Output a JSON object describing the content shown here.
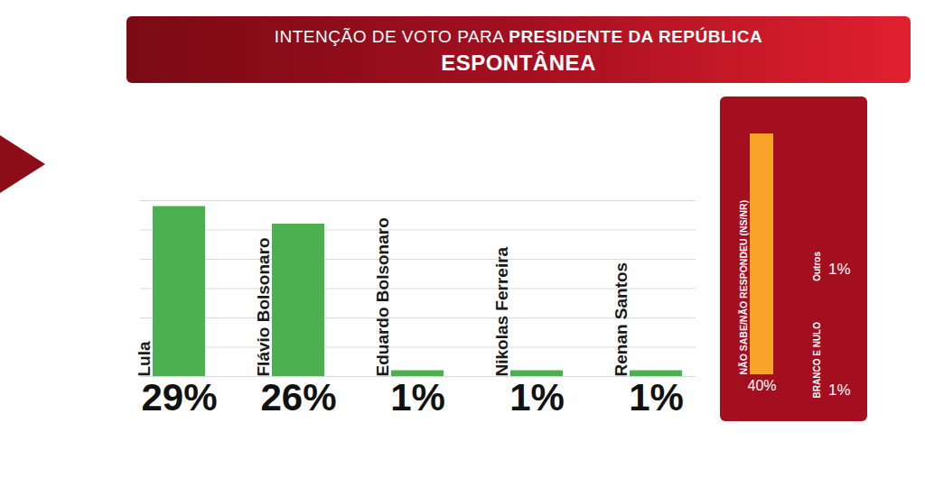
{
  "chart_data": [
    {
      "type": "bar",
      "title": "INTENÇÃO DE VOTO PARA PRESIDENTE DA REPÚBLICA",
      "title_emphasis": "PRESIDENTE DA REPÚBLICA",
      "subtitle": "ESPONTÂNEA",
      "categories": [
        "Lula",
        "Flávio Bolsonaro",
        "Eduardo Bolsonaro",
        "Nikolas Ferreira",
        "Renan Santos"
      ],
      "values": [
        29,
        26,
        1,
        1,
        1
      ],
      "value_labels": [
        "29%",
        "26%",
        "1%",
        "1%",
        "1%"
      ],
      "color": "#4cb050",
      "ylim": [
        0,
        30
      ],
      "yticks": [
        0,
        5,
        10,
        15,
        20,
        25,
        30
      ],
      "grid": true,
      "data_labels": true,
      "tick_labels": false
    },
    {
      "type": "bar",
      "categories": [
        "NÃO SABE/NÃO RESPONDEU (NS/NR)"
      ],
      "values": [
        40
      ],
      "value_labels": [
        "40%"
      ],
      "color": "#f7a428",
      "ylim": [
        0,
        40
      ],
      "data_labels": true,
      "tick_labels": false,
      "others": [
        {
          "label": "Outros",
          "value": 1,
          "value_label": "1%"
        },
        {
          "label": "BRANCO E NULO",
          "value": 1,
          "value_label": "1%"
        }
      ]
    }
  ]
}
